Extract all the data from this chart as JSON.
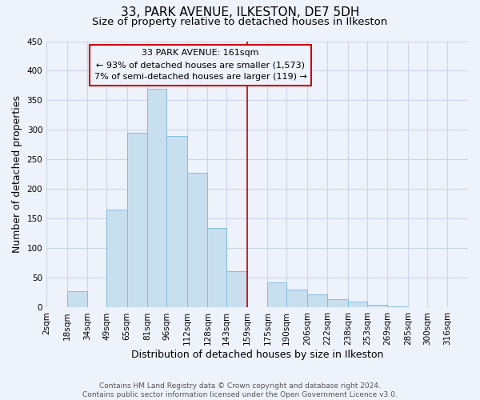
{
  "title": "33, PARK AVENUE, ILKESTON, DE7 5DH",
  "subtitle": "Size of property relative to detached houses in Ilkeston",
  "xlabel": "Distribution of detached houses by size in Ilkeston",
  "ylabel": "Number of detached properties",
  "footer_line1": "Contains HM Land Registry data © Crown copyright and database right 2024.",
  "footer_line2": "Contains public sector information licensed under the Open Government Licence v3.0.",
  "annotation_title": "33 PARK AVENUE: 161sqm",
  "annotation_line2": "← 93% of detached houses are smaller (1,573)",
  "annotation_line3": "7% of semi-detached houses are larger (119) →",
  "bar_left_edges": [
    2,
    18,
    34,
    49,
    65,
    81,
    96,
    112,
    128,
    143,
    159,
    175,
    190,
    206,
    222,
    238,
    253,
    269,
    285,
    300,
    316
  ],
  "bar_heights": [
    0,
    28,
    0,
    165,
    295,
    370,
    290,
    228,
    135,
    62,
    0,
    42,
    30,
    22,
    14,
    10,
    5,
    2,
    1,
    0,
    0
  ],
  "bar_widths": [
    16,
    16,
    15,
    16,
    16,
    15,
    16,
    16,
    15,
    16,
    16,
    15,
    16,
    16,
    16,
    15,
    16,
    16,
    15,
    16,
    16
  ],
  "bar_color": "#c8dff0",
  "bar_edge_color": "#7ab8d9",
  "vline_x": 159,
  "vline_color": "#cc0000",
  "annotation_box_color": "#cc0000",
  "ylim": [
    0,
    450
  ],
  "yticks": [
    0,
    50,
    100,
    150,
    200,
    250,
    300,
    350,
    400,
    450
  ],
  "xtick_labels": [
    "2sqm",
    "18sqm",
    "34sqm",
    "49sqm",
    "65sqm",
    "81sqm",
    "96sqm",
    "112sqm",
    "128sqm",
    "143sqm",
    "159sqm",
    "175sqm",
    "190sqm",
    "206sqm",
    "222sqm",
    "238sqm",
    "253sqm",
    "269sqm",
    "285sqm",
    "300sqm",
    "316sqm"
  ],
  "grid_color": "#ccd5e8",
  "background_color": "#eef2fb",
  "title_fontsize": 11,
  "subtitle_fontsize": 9.5,
  "axis_label_fontsize": 9,
  "tick_fontsize": 7.5,
  "footer_fontsize": 6.5,
  "annotation_fontsize": 8
}
